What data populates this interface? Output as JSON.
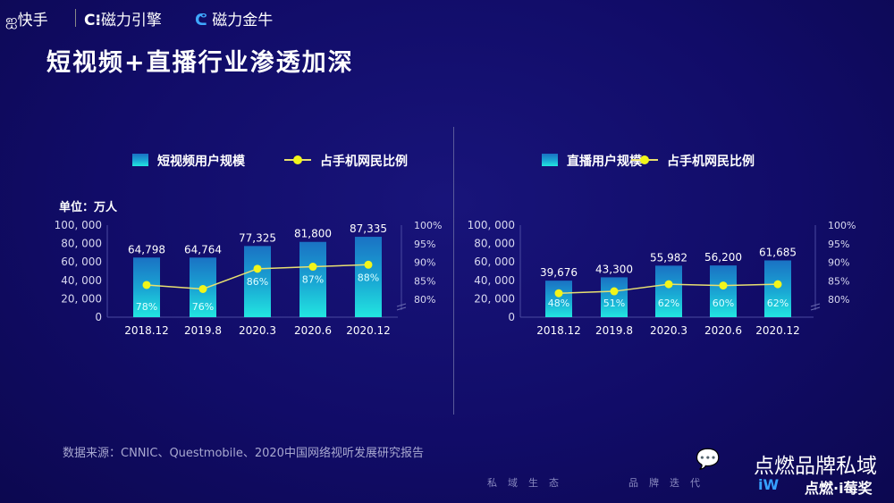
{
  "header": {
    "logos": [
      "快手",
      "磁力引擎",
      "磁力金牛"
    ],
    "title": "短视频+直播行业渗透加深"
  },
  "source": "数据来源：CNNIC、Questmobile、2020中国网络视听发展研究报告",
  "footer": {
    "tagline_left": "私域生态",
    "tagline_right": "品牌迭代",
    "wechat_name": "点燃品牌私域",
    "award_logo": "点燃·i莓奖"
  },
  "colors": {
    "bar_top": "#1a72c4",
    "bar_bottom": "#22e6e0",
    "line": "#e8e070",
    "marker": "#f2f51a",
    "background": "#110c68"
  },
  "chart_data": [
    {
      "type": "bar+line",
      "unit_label": "单位：万人",
      "categories": [
        "2018.12",
        "2019.8",
        "2020.3",
        "2020.6",
        "2020.12"
      ],
      "series": [
        {
          "name": "短视频用户规模",
          "type": "bar",
          "values": [
            64798,
            64764,
            77325,
            81800,
            87335
          ],
          "labels": [
            "64,798",
            "64,764",
            "77,325",
            "81,800",
            "87,335"
          ]
        },
        {
          "name": "占手机网民比例",
          "type": "line",
          "values": [
            78,
            76,
            86,
            87,
            88
          ],
          "labels": [
            "78%",
            "76%",
            "86%",
            "87%",
            "88%"
          ]
        }
      ],
      "y_left": {
        "range": [
          0,
          100000
        ],
        "ticks": [
          "0",
          "20, 000",
          "40, 000",
          "60, 000",
          "80, 000",
          "100, 000"
        ]
      },
      "y_right": {
        "range": [
          80,
          100
        ],
        "ticks": [
          "80%",
          "85%",
          "90%",
          "95%",
          "100%"
        ],
        "axis_break": true
      },
      "legend": "top"
    },
    {
      "type": "bar+line",
      "categories": [
        "2018.12",
        "2019.8",
        "2020.3",
        "2020.6",
        "2020.12"
      ],
      "series": [
        {
          "name": "直播用户规模",
          "type": "bar",
          "values": [
            39676,
            43300,
            55982,
            56200,
            61685
          ],
          "labels": [
            "39,676",
            "43,300",
            "55,982",
            "56,200",
            "61,685"
          ]
        },
        {
          "name": "占手机网民比例",
          "type": "line",
          "values": [
            48,
            51,
            62,
            60,
            62
          ],
          "labels": [
            "48%",
            "51%",
            "62%",
            "60%",
            "62%"
          ]
        }
      ],
      "y_left": {
        "range": [
          0,
          100000
        ],
        "ticks": [
          "0",
          "20, 000",
          "40, 000",
          "60, 000",
          "80, 000",
          "100, 000"
        ]
      },
      "y_right": {
        "range": [
          80,
          100
        ],
        "ticks": [
          "80%",
          "85%",
          "90%",
          "95%",
          "100%"
        ],
        "axis_break": true
      },
      "legend": "top"
    }
  ]
}
